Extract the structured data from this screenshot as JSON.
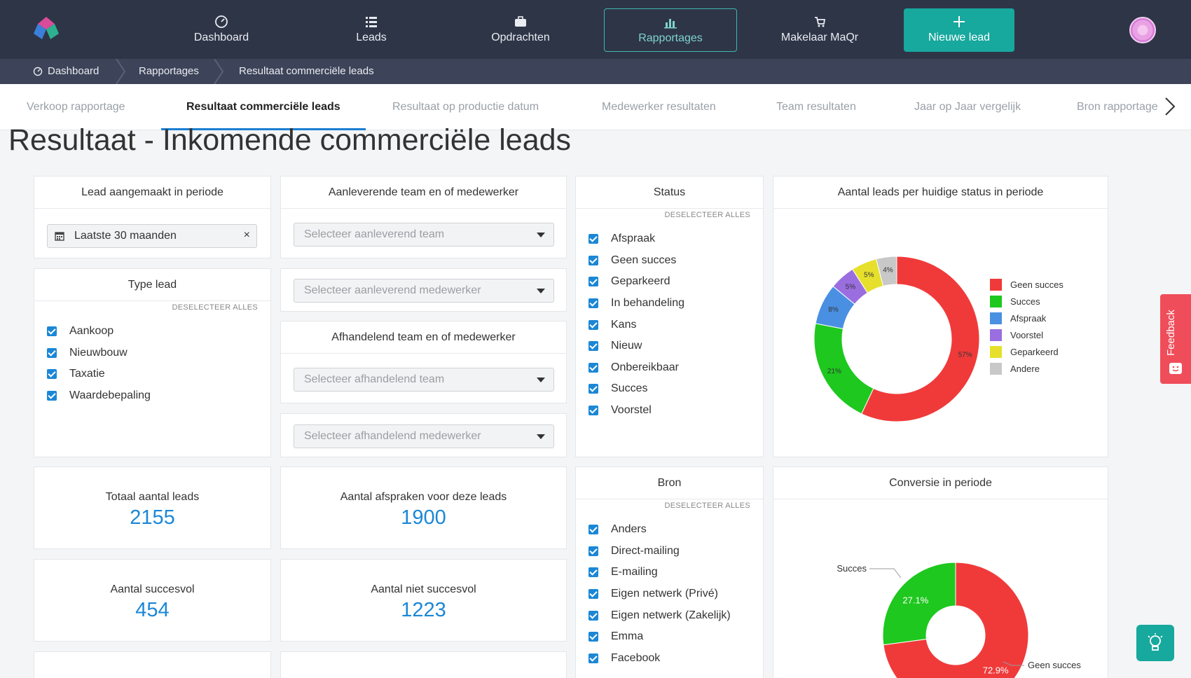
{
  "nav": {
    "items": [
      {
        "label": "Dashboard",
        "icon": "dashboard-icon"
      },
      {
        "label": "Leads",
        "icon": "list-icon"
      },
      {
        "label": "Opdrachten",
        "icon": "briefcase-icon"
      },
      {
        "label": "Rapportages",
        "icon": "bar-chart-icon"
      },
      {
        "label": "Makelaar MaQr",
        "icon": "cart-icon"
      }
    ],
    "cta_label": "Nieuwe lead",
    "colors": {
      "bg": "#2e3547",
      "accent": "#17a89e"
    }
  },
  "breadcrumb": [
    "Dashboard",
    "Rapportages",
    "Resultaat commerciële leads"
  ],
  "tabs": [
    "Verkoop rapportage",
    "Resultaat commerciële leads",
    "Resultaat op productie datum",
    "Medewerker resultaten",
    "Team resultaten",
    "Jaar op Jaar vergelijk",
    "Bron rapportage"
  ],
  "active_tab": "Resultaat commerciële leads",
  "page_title": "Resultaat - Inkomende commerciële leads",
  "deselect_all": "DESELECTEER ALLES",
  "period": {
    "title": "Lead aangemaakt in periode",
    "value": "Laatste 30 maanden",
    "clear": "×"
  },
  "type_lead": {
    "title": "Type lead",
    "items": [
      "Aankoop",
      "Nieuwbouw",
      "Taxatie",
      "Waardebepaling"
    ]
  },
  "delivering": {
    "title": "Aanleverende team en of medewerker",
    "team_placeholder": "Selecteer aanleverend team",
    "employee_placeholder": "Selecteer aanleverend medewerker"
  },
  "handling": {
    "title": "Afhandelend team en of medewerker",
    "team_placeholder": "Selecteer afhandelend team",
    "employee_placeholder": "Selecteer afhandelend medewerker"
  },
  "status": {
    "title": "Status",
    "items": [
      "Afspraak",
      "Geen succes",
      "Geparkeerd",
      "In behandeling",
      "Kans",
      "Nieuw",
      "Onbereikbaar",
      "Succes",
      "Voorstel"
    ]
  },
  "bron": {
    "title": "Bron",
    "items": [
      "Anders",
      "Direct-mailing",
      "E-mailing",
      "Eigen netwerk (Privé)",
      "Eigen netwerk (Zakelijk)",
      "Emma",
      "Facebook"
    ]
  },
  "stats": {
    "total_label": "Totaal aantal leads",
    "total_value": "2155",
    "appointments_label": "Aantal afspraken voor deze leads",
    "appointments_value": "1900",
    "success_label": "Aantal succesvol",
    "success_value": "454",
    "unsuccess_label": "Aantal niet succesvol",
    "unsuccess_value": "1223"
  },
  "chart_data": [
    {
      "type": "pie",
      "title": "Aantal leads per huidige status in periode",
      "categories": [
        "Geen succes",
        "Succes",
        "Afspraak",
        "Voorstel",
        "Geparkeerd",
        "Andere"
      ],
      "values": [
        57,
        21,
        8,
        5,
        5,
        4
      ],
      "labels": [
        "57%",
        "21%",
        "8%",
        "5%",
        "5%",
        "4%"
      ],
      "colors": [
        "#f03a3a",
        "#1ec81e",
        "#4a90e2",
        "#9b6ee0",
        "#e6e02c",
        "#c8c8c8"
      ],
      "legend_position": "right"
    },
    {
      "type": "pie",
      "title": "Conversie in periode",
      "categories": [
        "Geen succes",
        "Succes"
      ],
      "values": [
        72.9,
        27.1
      ],
      "labels": [
        "72.9%",
        "27.1%"
      ],
      "colors": [
        "#f03a3a",
        "#1ec81e"
      ]
    }
  ],
  "feedback_label": "Feedback"
}
